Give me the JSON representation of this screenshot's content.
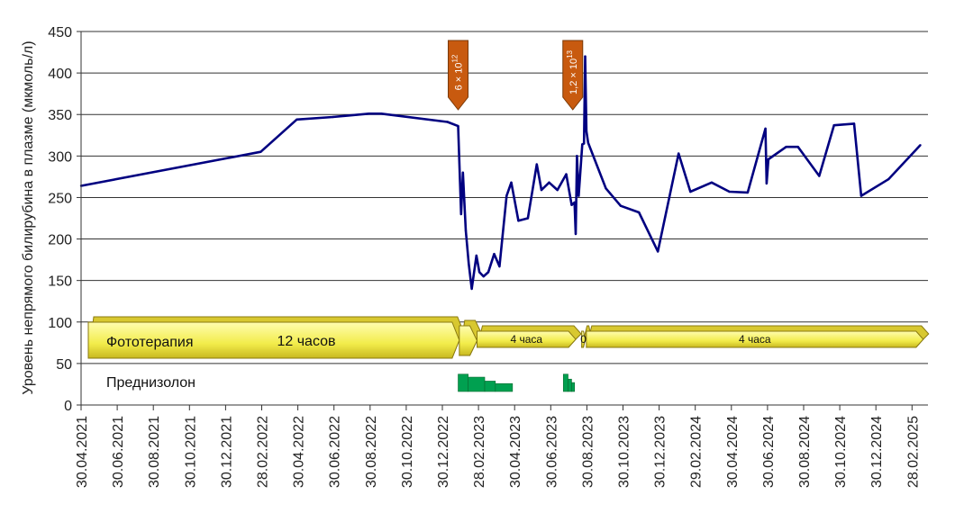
{
  "chart_data": {
    "type": "line",
    "ylabel": "Уровень непрямого билирубина в плазме (мкмоль/л)",
    "ylim": [
      0,
      450
    ],
    "y_ticks": [
      0,
      50,
      100,
      150,
      200,
      250,
      300,
      350,
      400,
      450
    ],
    "grid": true,
    "x_ticks": [
      "30.04.2021",
      "30.06.2021",
      "30.08.2021",
      "30.10.2021",
      "30.12.2021",
      "28.02.2022",
      "30.04.2022",
      "30.06.2022",
      "30.08.2022",
      "30.10.2022",
      "30.12.2022",
      "28.02.2023",
      "30.04.2023",
      "30.06.2023",
      "30.08.2023",
      "30.10.2023",
      "30.12.2023",
      "29.02.2024",
      "30.04.2024",
      "30.06.2024",
      "30.08.2024",
      "30.10.2024",
      "30.12.2024",
      "28.02.2025"
    ],
    "series": [
      {
        "color": "#000080",
        "points": [
          [
            "2021-04-30",
            264
          ],
          [
            "2022-02-28",
            305
          ],
          [
            "2022-04-30",
            344
          ],
          [
            "2022-06-30",
            347
          ],
          [
            "2022-08-30",
            351
          ],
          [
            "2022-09-20",
            351
          ],
          [
            "2023-01-10",
            341
          ],
          [
            "2023-01-28",
            336
          ],
          [
            "2023-02-02",
            230
          ],
          [
            "2023-02-05",
            280
          ],
          [
            "2023-02-10",
            210
          ],
          [
            "2023-02-15",
            170
          ],
          [
            "2023-02-20",
            140
          ],
          [
            "2023-02-28",
            180
          ],
          [
            "2023-03-05",
            160
          ],
          [
            "2023-03-12",
            155
          ],
          [
            "2023-03-20",
            160
          ],
          [
            "2023-03-30",
            182
          ],
          [
            "2023-04-08",
            167
          ],
          [
            "2023-04-20",
            252
          ],
          [
            "2023-04-28",
            268
          ],
          [
            "2023-05-10",
            222
          ],
          [
            "2023-05-26",
            225
          ],
          [
            "2023-06-10",
            290
          ],
          [
            "2023-06-18",
            259
          ],
          [
            "2023-07-01",
            268
          ],
          [
            "2023-07-15",
            259
          ],
          [
            "2023-07-30",
            278
          ],
          [
            "2023-08-08",
            241
          ],
          [
            "2023-08-13",
            244
          ],
          [
            "2023-08-15",
            206
          ],
          [
            "2023-08-17",
            300
          ],
          [
            "2023-08-20",
            252
          ],
          [
            "2023-08-26",
            314
          ],
          [
            "2023-08-29",
            315
          ],
          [
            "2023-08-31",
            420
          ],
          [
            "2023-09-02",
            330
          ],
          [
            "2023-09-05",
            316
          ],
          [
            "2023-10-05",
            261
          ],
          [
            "2023-10-30",
            240
          ],
          [
            "2023-11-30",
            232
          ],
          [
            "2024-01-01",
            185
          ],
          [
            "2024-02-05",
            303
          ],
          [
            "2024-02-25",
            257
          ],
          [
            "2024-04-01",
            268
          ],
          [
            "2024-05-01",
            257
          ],
          [
            "2024-06-01",
            256
          ],
          [
            "2024-07-01",
            333
          ],
          [
            "2024-07-03",
            267
          ],
          [
            "2024-07-06",
            296
          ],
          [
            "2024-08-05",
            311
          ],
          [
            "2024-08-25",
            311
          ],
          [
            "2024-09-30",
            276
          ],
          [
            "2024-10-25",
            337
          ],
          [
            "2024-11-28",
            339
          ],
          [
            "2024-12-10",
            252
          ],
          [
            "2025-01-25",
            272
          ],
          [
            "2025-03-20",
            313
          ]
        ]
      }
    ],
    "markers": [
      {
        "date": "2023-01-28",
        "text": "6 × 10",
        "sup": "12",
        "color": "#c85a0f"
      },
      {
        "date": "2023-08-10",
        "text": "1,2 × 10",
        "sup": "13",
        "color": "#c85a0f"
      }
    ],
    "therapy": {
      "label": "Фототерапия",
      "segments": [
        {
          "start": "2021-04-30",
          "end": "2023-01-30",
          "label": "12 часов"
        },
        {
          "start": "2023-01-30",
          "end": "2023-03-01",
          "label": ""
        },
        {
          "start": "2023-03-01",
          "end": "2023-08-15",
          "label": "4 часа"
        },
        {
          "start": "2023-08-25",
          "end": "2023-08-31",
          "label": "0"
        },
        {
          "start": "2023-09-02",
          "end": "2025-03-25",
          "label": "4 часа"
        }
      ]
    },
    "prednisolone": {
      "label": "Преднизолон",
      "color": "#00a050",
      "bars": [
        {
          "start": "2023-01-28",
          "end": "2023-02-14",
          "value": 35
        },
        {
          "start": "2023-02-14",
          "end": "2023-03-14",
          "value": 29
        },
        {
          "start": "2023-03-14",
          "end": "2023-04-01",
          "value": 21
        },
        {
          "start": "2023-04-01",
          "end": "2023-04-30",
          "value": 16
        },
        {
          "start": "2023-07-25",
          "end": "2023-08-02",
          "value": 35
        },
        {
          "start": "2023-08-02",
          "end": "2023-08-08",
          "value": 25
        },
        {
          "start": "2023-08-08",
          "end": "2023-08-13",
          "value": 18
        }
      ]
    }
  }
}
